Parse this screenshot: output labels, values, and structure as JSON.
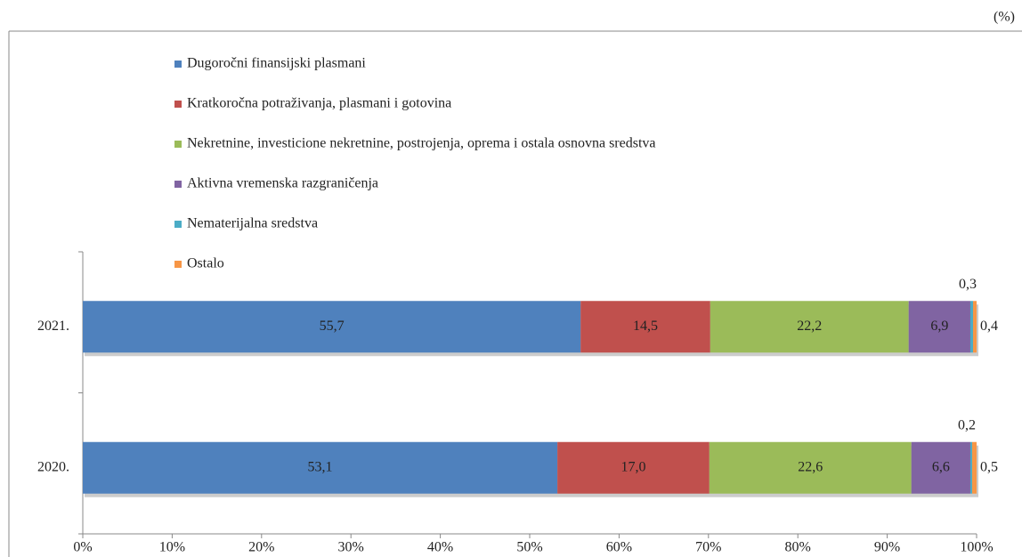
{
  "chart_data": {
    "type": "stacked_bar_horizontal",
    "unit_label": "(%)",
    "categories": [
      "2021.",
      "2020."
    ],
    "series": [
      {
        "name": "Dugoročni finansijski plasmani",
        "color": "#4f81bd",
        "values": [
          55.7,
          53.1
        ],
        "value_labels": [
          "55,7",
          "53,1"
        ]
      },
      {
        "name": "Kratkoročna potraživanja, plasmani i gotovina",
        "color": "#c0504d",
        "values": [
          14.5,
          17.0
        ],
        "value_labels": [
          "14,5",
          "17,0"
        ]
      },
      {
        "name": "Nekretnine, investicione nekretnine, postrojenja, oprema i ostala osnovna sredstva",
        "color": "#9bbb59",
        "values": [
          22.2,
          22.6
        ],
        "value_labels": [
          "22,2",
          "22,6"
        ]
      },
      {
        "name": "Aktivna vremenska razgraničenja",
        "color": "#8064a2",
        "values": [
          6.9,
          6.6
        ],
        "value_labels": [
          "6,9",
          "6,6"
        ]
      },
      {
        "name": "Nematerijalna sredstva",
        "color": "#4bacc6",
        "values": [
          0.3,
          0.2
        ],
        "value_labels": [
          "0,3",
          "0,2"
        ]
      },
      {
        "name": "Ostalo",
        "color": "#f79646",
        "values": [
          0.4,
          0.5
        ],
        "value_labels": [
          "0,4",
          "0,5"
        ]
      }
    ],
    "xlim": [
      0,
      100
    ],
    "xticks": [
      {
        "value": 0,
        "label": "0%"
      },
      {
        "value": 10,
        "label": "10%"
      },
      {
        "value": 20,
        "label": "20%"
      },
      {
        "value": 30,
        "label": "30%"
      },
      {
        "value": 40,
        "label": "40%"
      },
      {
        "value": 50,
        "label": "50%"
      },
      {
        "value": 60,
        "label": "60%"
      },
      {
        "value": 70,
        "label": "70%"
      },
      {
        "value": 80,
        "label": "80%"
      },
      {
        "value": 90,
        "label": "90%"
      },
      {
        "value": 100,
        "label": "100%"
      }
    ],
    "legend": "top-left"
  }
}
